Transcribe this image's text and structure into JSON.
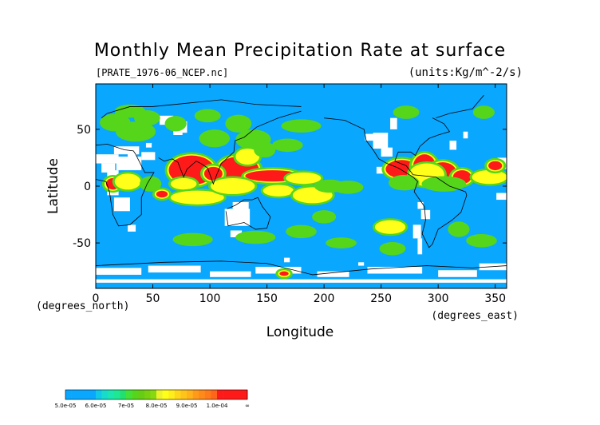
{
  "chart_data": {
    "type": "heatmap",
    "title": "Monthly Mean Precipitation Rate at surface",
    "subtitle_left": "[PRATE_1976-06_NCEP.nc]",
    "subtitle_right": "(units:Kg/m^-2/s)",
    "xlabel": "Longitude",
    "ylabel": "Latitude",
    "x_unit_label": "(degrees_east)",
    "y_unit_label": "(degrees_north)",
    "xlim": [
      0,
      360
    ],
    "ylim": [
      -90,
      90
    ],
    "x_ticks": [
      0,
      50,
      100,
      150,
      200,
      250,
      300,
      350
    ],
    "y_ticks": [
      -50,
      0,
      50
    ],
    "grid": false,
    "colorbar": {
      "placement": "bottom-left",
      "levels": [
        "5.0e-05",
        "6.0e-05",
        "7e-05",
        "8.0e-05",
        "9.0e-05",
        "1.0e-04",
        "∞"
      ],
      "colors": [
        "#0aa7ff",
        "#19e3aa",
        "#55d61a",
        "#ffff1a",
        "#ff9a1a",
        "#ff1a1a"
      ],
      "band_colors": [
        [
          "#0aa7ff",
          "#0aa7ff",
          "#0aa7ff",
          "#0aa7ff",
          "#0aa7ff"
        ],
        [
          "#11c8e8",
          "#17dccc",
          "#1be6b0",
          "#1ee896",
          "#22e070"
        ],
        [
          "#44e03a",
          "#55d61a",
          "#66cc14",
          "#77d010",
          "#88d810"
        ],
        [
          "#eef22a",
          "#ffff1a",
          "#ffee1a",
          "#ffd61a",
          "#ffc41a"
        ],
        [
          "#ffb21a",
          "#ff9a1a",
          "#ff8a1a",
          "#ff7a1a",
          "#ff661a"
        ],
        [
          "#ff1a1a",
          "#ff1a1a",
          "#ff1a1a",
          "#ff1a1a",
          "#ff1a1a"
        ]
      ]
    },
    "field_colors": {
      "background": "#0aa7ff",
      "below_min": "#ffffff",
      "green": "#55d61a",
      "yellow": "#ffff1a",
      "red": "#ff1a1a"
    }
  }
}
